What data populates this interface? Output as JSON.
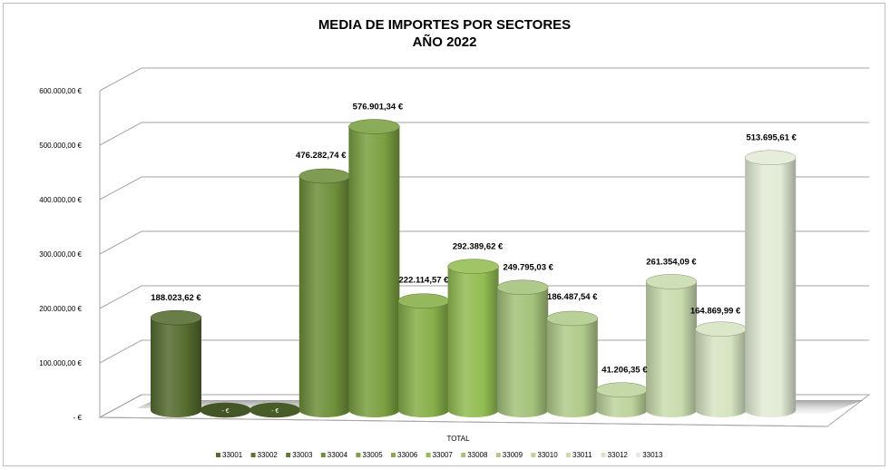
{
  "chart_data": {
    "type": "bar",
    "title": "MEDIA DE IMPORTES POR SECTORES",
    "subtitle": "AÑO 2022",
    "xlabel": "",
    "ylabel": "",
    "categories": [
      "TOTAL"
    ],
    "ylim": [
      0,
      600000
    ],
    "y_ticks": [
      {
        "value": 600000,
        "label": "600.000,00 €"
      },
      {
        "value": 500000,
        "label": "500.000,00 €"
      },
      {
        "value": 400000,
        "label": "400.000,00 €"
      },
      {
        "value": 300000,
        "label": "300.000,00 €"
      },
      {
        "value": 200000,
        "label": "200.000,00 €"
      },
      {
        "value": 100000,
        "label": "100.000,00 €"
      },
      {
        "value": 0,
        "label": "-   €"
      }
    ],
    "grid": true,
    "legend_position": "bottom",
    "series": [
      {
        "name": "33001",
        "value": 188023.62,
        "label": "188.023,62 €",
        "color": "#556b2f"
      },
      {
        "name": "33002",
        "value": 0,
        "label": "-   €",
        "color": "#5a7232"
      },
      {
        "name": "33003",
        "value": 0,
        "label": "-   €",
        "color": "#607a35"
      },
      {
        "name": "33004",
        "value": 476282.74,
        "label": "476.282,74 €",
        "color": "#6e8f3a"
      },
      {
        "name": "33005",
        "value": 576901.34,
        "label": "576.901,34 €",
        "color": "#7aa040"
      },
      {
        "name": "33006",
        "value": 222114.57,
        "label": "222.114,57 €",
        "color": "#86ae48"
      },
      {
        "name": "33007",
        "value": 292389.62,
        "label": "292.389,62 €",
        "color": "#92bd52"
      },
      {
        "name": "33008",
        "value": 249795.03,
        "label": "249.795,03 €",
        "color": "#a4c27a"
      },
      {
        "name": "33009",
        "value": 186487.54,
        "label": "186.487,54 €",
        "color": "#b0ca8a"
      },
      {
        "name": "33010",
        "value": 41206.35,
        "label": "41.206,35 €",
        "color": "#bdd39c"
      },
      {
        "name": "33011",
        "value": 261354.09,
        "label": "261.354,09 €",
        "color": "#c9dcae"
      },
      {
        "name": "33012",
        "value": 164869.99,
        "label": "164.869,99 €",
        "color": "#d6e4c2"
      },
      {
        "name": "33013",
        "value": 513695.61,
        "label": "513.695,61 €",
        "color": "#e3ecd6"
      }
    ]
  }
}
